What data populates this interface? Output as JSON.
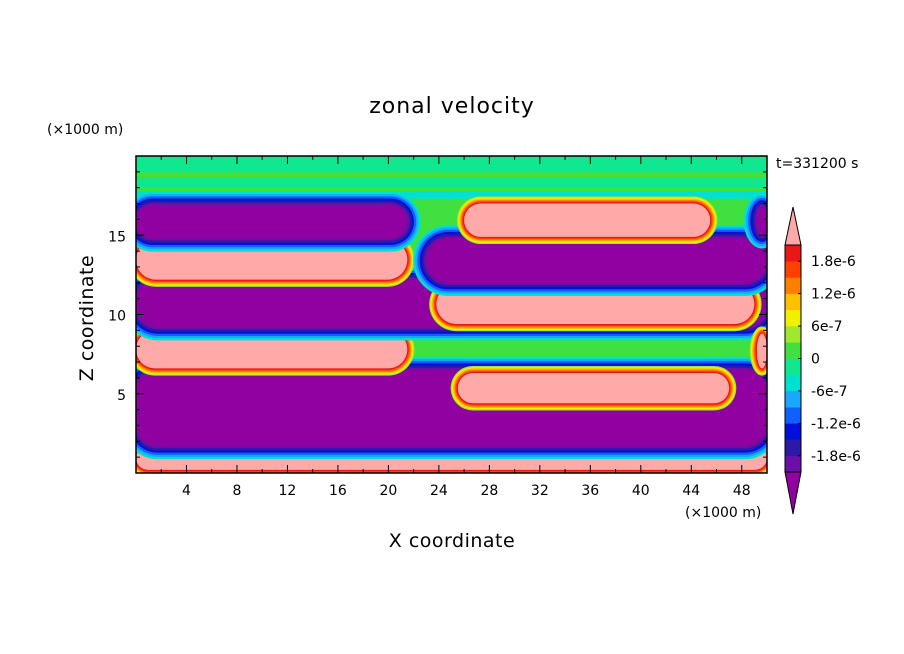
{
  "chart_data": {
    "type": "heatmap",
    "title": "zonal velocity",
    "xlabel": "X coordinate",
    "ylabel": "Z coordinate",
    "x_unit": "(×1000 m)",
    "y_unit": "(×1000 m)",
    "time_label": "t=331200 s",
    "xlim": [
      0,
      50
    ],
    "ylim": [
      0,
      20
    ],
    "x_ticks": [
      4,
      8,
      12,
      16,
      20,
      24,
      28,
      32,
      36,
      40,
      44,
      48
    ],
    "y_ticks": [
      5,
      10,
      15
    ],
    "colorbar": {
      "min": -2.1e-06,
      "max": 2.1e-06,
      "step": 3e-07,
      "labels": [
        "1.8e-6",
        "1.2e-6",
        "6e-7",
        "0",
        "-6e-7",
        "-1.2e-6",
        "-1.8e-6"
      ],
      "label_values": [
        1.8e-06,
        1.2e-06,
        6e-07,
        0,
        -6e-07,
        -1.2e-06,
        -1.8e-06
      ],
      "colors": [
        "#6a0fa8",
        "#2a1aa8",
        "#0010d8",
        "#1060ff",
        "#18a8ff",
        "#00e0d0",
        "#10e890",
        "#40e040",
        "#a0e830",
        "#f0f000",
        "#ffc000",
        "#ff8000",
        "#ff4000",
        "#e81818"
      ],
      "under_color": "#9100a0",
      "over_color": "#ffaaa8"
    },
    "regions": [
      {
        "sign": "positive",
        "x": [
          0,
          50
        ],
        "z": [
          0.2,
          1.7
        ]
      },
      {
        "sign": "negative",
        "x": [
          0,
          50
        ],
        "z": [
          1.7,
          6.5
        ]
      },
      {
        "sign": "positive",
        "x": [
          0,
          21.5
        ],
        "z": [
          6.6,
          9.0
        ]
      },
      {
        "sign": "negative",
        "x": [
          0,
          50
        ],
        "z": [
          9.2,
          12.2
        ]
      },
      {
        "sign": "positive",
        "x": [
          0,
          21.5
        ],
        "z": [
          12.2,
          14.7
        ]
      },
      {
        "sign": "negative",
        "x": [
          0,
          21.5
        ],
        "z": [
          14.8,
          16.9
        ]
      },
      {
        "sign": "positive",
        "x": [
          23.8,
          49.0
        ],
        "z": [
          9.4,
          11.9
        ]
      },
      {
        "sign": "negative",
        "x": [
          23.0,
          50
        ],
        "z": [
          12.0,
          14.8
        ]
      },
      {
        "sign": "positive",
        "x": [
          26.0,
          45.5
        ],
        "z": [
          14.9,
          17.0
        ]
      },
      {
        "sign": "positive",
        "x": [
          25.5,
          47.0
        ],
        "z": [
          4.4,
          6.3
        ]
      },
      {
        "sign": "positive",
        "x": [
          49.2,
          50
        ],
        "z": [
          6.6,
          8.8
        ]
      },
      {
        "sign": "negative",
        "x": [
          49.2,
          50
        ],
        "z": [
          15.0,
          16.8
        ]
      }
    ]
  }
}
